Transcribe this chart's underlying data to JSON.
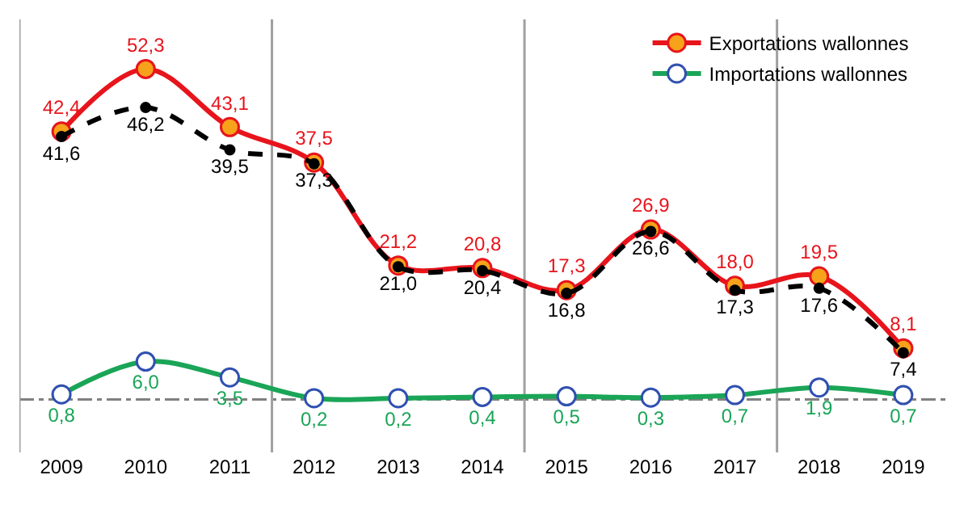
{
  "chart_data": {
    "type": "line",
    "x": [
      2009,
      2010,
      2011,
      2012,
      2013,
      2014,
      2015,
      2016,
      2017,
      2018,
      2019
    ],
    "xlim": [
      2008.5,
      2019.5
    ],
    "xticks": [
      2009,
      2010,
      2011,
      2012,
      2013,
      2014,
      2015,
      2016,
      2017,
      2018,
      2019
    ],
    "series": [
      {
        "name": "Exportations wallonnes",
        "color": "#e8141c",
        "values": [
          42.4,
          52.3,
          43.1,
          37.5,
          21.2,
          20.8,
          17.3,
          26.9,
          18.0,
          19.5,
          8.1
        ],
        "value_labels": [
          "42,4",
          "52,3",
          "43,1",
          "37,5",
          "21,2",
          "20,8",
          "17,3",
          "26,9",
          "18,0",
          "19,5",
          "8,1"
        ],
        "marker": "circle",
        "line_style": "solid"
      },
      {
        "color": "#000000",
        "values": [
          41.6,
          46.2,
          39.5,
          37.3,
          21.0,
          20.4,
          16.8,
          26.6,
          17.3,
          17.6,
          7.4
        ],
        "value_labels": [
          "41,6",
          "46,2",
          "39,5",
          "37,3",
          "21,0",
          "20,4",
          "16,8",
          "26,6",
          "17,3",
          "17,6",
          "7,4"
        ],
        "marker": "circle",
        "line_style": "dashed"
      },
      {
        "name": "Importations wallonnes",
        "color": "#1aa557",
        "values": [
          0.8,
          6.0,
          3.5,
          0.2,
          0.2,
          0.4,
          0.5,
          0.3,
          0.7,
          1.9,
          0.7
        ],
        "value_labels": [
          "0,8",
          "6,0",
          "3,5",
          "0,2",
          "0,2",
          "0,4",
          "0,5",
          "0,3",
          "0,7",
          "1,9",
          "0,7"
        ],
        "marker": "circle",
        "line_style": "solid"
      }
    ],
    "ref_lines": [
      {
        "axis": "y",
        "value": 0,
        "color": "#808080",
        "line_style": "dashed"
      },
      {
        "axis": "x",
        "value": 2008.5,
        "color": "#a0a0a0",
        "line_style": "solid"
      },
      {
        "axis": "x",
        "value": 2011.5,
        "color": "#a0a0a0",
        "line_style": "solid"
      },
      {
        "axis": "x",
        "value": 2014.5,
        "color": "#a0a0a0",
        "line_style": "solid"
      },
      {
        "axis": "x",
        "value": 2017.5,
        "color": "#a0a0a0",
        "line_style": "solid"
      }
    ],
    "grid": false,
    "legend": "top right",
    "tick_labels": "x"
  }
}
